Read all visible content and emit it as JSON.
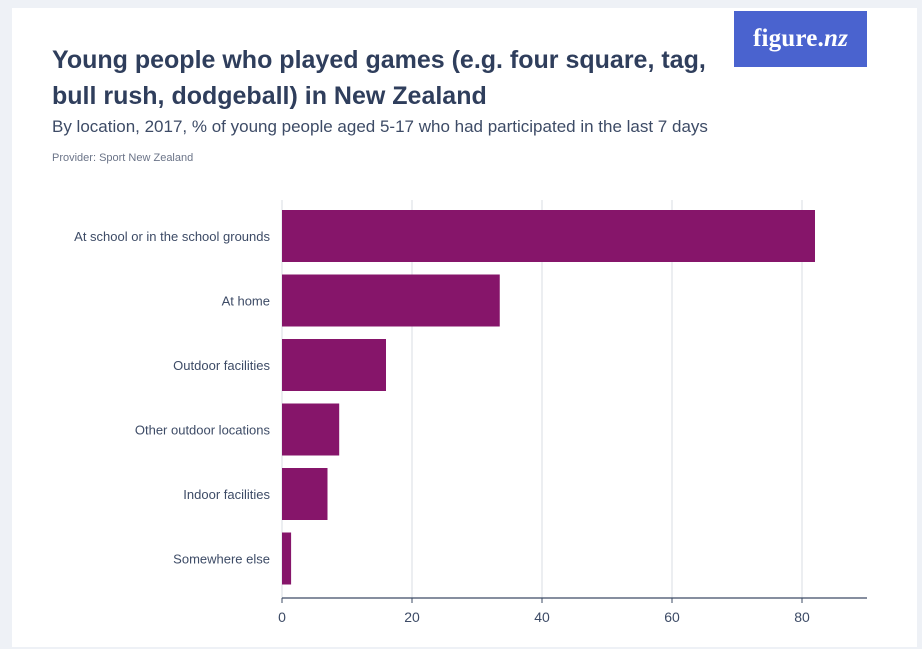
{
  "logo": {
    "text_main": "figure.",
    "text_italic": "nz"
  },
  "chart_data": {
    "type": "bar",
    "orientation": "horizontal",
    "title": "Young people who played games (e.g. four square, tag, bull rush, dodgeball) in New Zealand",
    "subtitle": "By location, 2017, % of young people aged 5-17 who had participated in the last 7 days",
    "provider": "Provider: Sport New Zealand",
    "categories": [
      "At school or in the school grounds",
      "At home",
      "Outdoor facilities",
      "Other outdoor locations",
      "Indoor facilities",
      "Somewhere else"
    ],
    "values": [
      82,
      33.5,
      16,
      8.8,
      7,
      1.4
    ],
    "xlim": [
      0,
      90
    ],
    "xticks": [
      0,
      20,
      40,
      60,
      80
    ],
    "grid": true,
    "bar_color": "#86156a"
  }
}
